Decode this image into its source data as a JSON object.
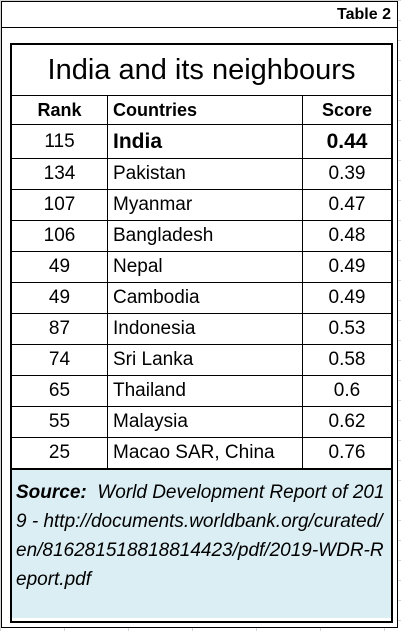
{
  "table_tag": "Table 2",
  "title": "India and its neighbours",
  "headers": {
    "rank": "Rank",
    "country": "Countries",
    "score": "Score"
  },
  "rows": [
    {
      "rank": "115",
      "country": "India",
      "score": "0.44"
    },
    {
      "rank": "134",
      "country": "Pakistan",
      "score": "0.39"
    },
    {
      "rank": "107",
      "country": "Myanmar",
      "score": "0.47"
    },
    {
      "rank": "106",
      "country": "Bangladesh",
      "score": "0.48"
    },
    {
      "rank": "49",
      "country": "Nepal",
      "score": "0.49"
    },
    {
      "rank": "49",
      "country": "Cambodia",
      "score": "0.49"
    },
    {
      "rank": "87",
      "country": "Indonesia",
      "score": "0.53"
    },
    {
      "rank": "74",
      "country": "Sri Lanka",
      "score": "0.58"
    },
    {
      "rank": "65",
      "country": "Thailand",
      "score": "0.6"
    },
    {
      "rank": "55",
      "country": "Malaysia",
      "score": "0.62"
    },
    {
      "rank": "25",
      "country": "Macao SAR, China",
      "score": "0.76"
    }
  ],
  "source": {
    "label": "Source:",
    "text": "World Development Report of 2019 - http://documents.worldbank.org/curated/en/816281518818814423/pdf/2019-WDR-Report.pdf"
  }
}
